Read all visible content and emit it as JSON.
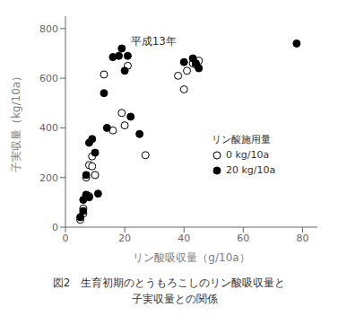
{
  "chart_data": {
    "type": "scatter",
    "xlabel": "リン酸吸収量（g/10a）",
    "ylabel": "子実収量（kg/10a）",
    "xlim": [
      0,
      85
    ],
    "ylim": [
      0,
      850
    ],
    "xticks": [
      0,
      20,
      40,
      60,
      80
    ],
    "yticks": [
      0,
      200,
      400,
      600,
      800
    ],
    "grid": false,
    "legend": "right",
    "legend_title": "リン酸施用量",
    "series": [
      {
        "name": "0 kg/10a",
        "color": "white",
        "marker": "circle",
        "x": [
          5,
          6,
          6,
          7,
          7,
          8,
          8,
          9,
          9,
          10,
          13,
          16,
          19,
          20,
          21,
          27,
          38,
          40,
          41,
          43,
          44,
          45
        ],
        "values": [
          30,
          55,
          75,
          130,
          200,
          125,
          250,
          245,
          285,
          210,
          615,
          390,
          460,
          410,
          650,
          290,
          610,
          555,
          630,
          660,
          655,
          670
        ]
      },
      {
        "name": "20 kg/10a",
        "color": "black",
        "marker": "circle",
        "x": [
          5,
          6,
          6,
          7,
          7,
          8,
          8,
          9,
          10,
          11,
          13,
          14,
          16,
          18,
          19,
          20,
          21,
          22,
          25,
          40,
          43,
          44,
          45,
          78
        ],
        "values": [
          40,
          65,
          110,
          130,
          210,
          120,
          340,
          355,
          300,
          135,
          540,
          400,
          685,
          690,
          720,
          630,
          690,
          445,
          375,
          665,
          680,
          660,
          640,
          740
        ]
      }
    ],
    "annotations": [
      {
        "text": "平成13年",
        "x": 22,
        "y": 775
      }
    ],
    "caption": [
      "図2　生育初期のとうもろこしのリン酸吸収量と",
      "　子実収量との関係"
    ]
  }
}
